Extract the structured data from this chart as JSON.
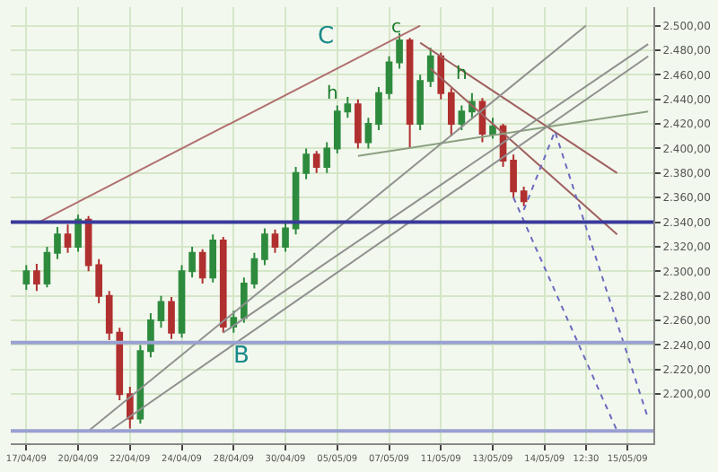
{
  "chart_data": {
    "type": "candlestick",
    "categories": [
      null,
      "17/04/09",
      null,
      null,
      null,
      null,
      "20/04/09",
      null,
      null,
      null,
      null,
      "22/04/09",
      null,
      null,
      null,
      null,
      "24/04/09",
      null,
      null,
      null,
      null,
      "28/04/09",
      null,
      null,
      null,
      null,
      "30/04/09",
      null,
      null,
      null,
      null,
      "05/05/09",
      null,
      null,
      null,
      null,
      "07/05/09",
      null,
      null,
      null,
      null,
      "11/05/09",
      null,
      null,
      null,
      null,
      "13/05/09",
      null,
      null,
      null,
      null,
      "14/05/09",
      null,
      null,
      null,
      "12:30",
      null,
      null,
      null,
      "15/05/09",
      null,
      null
    ],
    "ohlc": [
      null,
      [
        2290,
        2305,
        2285,
        2300
      ],
      [
        2300,
        2306,
        2284,
        2290
      ],
      [
        2290,
        2320,
        2287,
        2315
      ],
      [
        2315,
        2336,
        2310,
        2330
      ],
      [
        2330,
        2338,
        2315,
        2320
      ],
      [
        2320,
        2346,
        2316,
        2342
      ],
      [
        2342,
        2345,
        2300,
        2305
      ],
      [
        2305,
        2310,
        2274,
        2280
      ],
      [
        2280,
        2284,
        2244,
        2250
      ],
      [
        2250,
        2254,
        2195,
        2200
      ],
      [
        2200,
        2206,
        2172,
        2180
      ],
      [
        2180,
        2240,
        2176,
        2235
      ],
      [
        2235,
        2266,
        2230,
        2260
      ],
      [
        2260,
        2280,
        2254,
        2275
      ],
      [
        2275,
        2279,
        2245,
        2250
      ],
      [
        2250,
        2305,
        2246,
        2300
      ],
      [
        2300,
        2320,
        2295,
        2315
      ],
      [
        2315,
        2318,
        2290,
        2295
      ],
      [
        2295,
        2330,
        2291,
        2325
      ],
      [
        2325,
        2328,
        2250,
        2255
      ],
      [
        2255,
        2268,
        2250,
        2262
      ],
      [
        2262,
        2295,
        2258,
        2290
      ],
      [
        2290,
        2315,
        2286,
        2310
      ],
      [
        2310,
        2335,
        2305,
        2330
      ],
      [
        2330,
        2334,
        2315,
        2320
      ],
      [
        2320,
        2340,
        2316,
        2335
      ],
      [
        2335,
        2385,
        2330,
        2380
      ],
      [
        2380,
        2400,
        2375,
        2395
      ],
      [
        2395,
        2398,
        2380,
        2385
      ],
      [
        2385,
        2405,
        2380,
        2400
      ],
      [
        2400,
        2435,
        2396,
        2430
      ],
      [
        2430,
        2442,
        2425,
        2436
      ],
      [
        2436,
        2440,
        2400,
        2405
      ],
      [
        2405,
        2425,
        2400,
        2420
      ],
      [
        2420,
        2450,
        2415,
        2445
      ],
      [
        2445,
        2475,
        2440,
        2470
      ],
      [
        2470,
        2494,
        2465,
        2488
      ],
      [
        2488,
        2490,
        2400,
        2420
      ],
      [
        2420,
        2460,
        2415,
        2455
      ],
      [
        2455,
        2482,
        2450,
        2475
      ],
      [
        2475,
        2478,
        2440,
        2445
      ],
      [
        2445,
        2449,
        2410,
        2420
      ],
      [
        2420,
        2435,
        2415,
        2430
      ],
      [
        2430,
        2445,
        2425,
        2438
      ],
      [
        2438,
        2441,
        2405,
        2412
      ],
      [
        2412,
        2425,
        2408,
        2418
      ],
      [
        2418,
        2420,
        2385,
        2390
      ],
      [
        2390,
        2395,
        2360,
        2365
      ],
      [
        2365,
        2369,
        2353,
        2357
      ],
      null,
      null,
      null,
      null,
      null,
      null,
      null,
      null,
      null,
      null,
      null,
      null
    ],
    "series": [
      {
        "type": "line",
        "color": "#b07070",
        "line_style": "solid",
        "values": [
          null,
          null,
          2339,
          null,
          null,
          null,
          null,
          null,
          null,
          null,
          null,
          null,
          null,
          null,
          null,
          null,
          null,
          null,
          null,
          null,
          null,
          null,
          null,
          null,
          null,
          null,
          null,
          null,
          null,
          null,
          null,
          null,
          null,
          null,
          null,
          null,
          null,
          null,
          null,
          2500,
          null,
          null,
          null,
          null,
          null,
          null,
          null,
          null,
          null,
          null,
          null,
          null,
          null,
          null,
          null,
          null,
          null,
          null,
          null,
          null,
          null,
          null
        ]
      },
      {
        "type": "line",
        "color": "#a06060",
        "line_style": "solid",
        "values": [
          null,
          null,
          null,
          null,
          null,
          null,
          null,
          null,
          null,
          null,
          null,
          null,
          null,
          null,
          null,
          null,
          null,
          null,
          null,
          null,
          null,
          null,
          null,
          null,
          null,
          null,
          null,
          null,
          null,
          null,
          null,
          null,
          null,
          null,
          null,
          null,
          null,
          null,
          null,
          2486,
          null,
          null,
          null,
          null,
          null,
          null,
          null,
          null,
          null,
          null,
          null,
          null,
          null,
          null,
          null,
          null,
          null,
          null,
          2380,
          null,
          null,
          null
        ]
      },
      {
        "type": "line",
        "color": "#a06060",
        "line_style": "solid",
        "values": [
          null,
          null,
          null,
          null,
          null,
          null,
          null,
          null,
          null,
          null,
          null,
          null,
          null,
          null,
          null,
          null,
          null,
          null,
          null,
          null,
          null,
          null,
          null,
          null,
          null,
          null,
          null,
          null,
          null,
          null,
          null,
          null,
          null,
          null,
          null,
          null,
          null,
          null,
          null,
          null,
          2465,
          null,
          null,
          null,
          null,
          null,
          null,
          null,
          null,
          null,
          null,
          null,
          null,
          null,
          null,
          null,
          null,
          null,
          2330,
          null,
          null,
          null
        ]
      },
      {
        "type": "line",
        "color": "#8aa080",
        "line_style": "solid",
        "values": [
          null,
          null,
          null,
          null,
          null,
          null,
          null,
          null,
          null,
          null,
          null,
          null,
          null,
          null,
          null,
          null,
          null,
          null,
          null,
          null,
          null,
          null,
          null,
          null,
          null,
          null,
          null,
          null,
          null,
          null,
          null,
          null,
          null,
          2394,
          null,
          null,
          null,
          null,
          null,
          null,
          null,
          null,
          null,
          null,
          null,
          null,
          null,
          null,
          null,
          null,
          null,
          null,
          null,
          null,
          null,
          null,
          null,
          null,
          null,
          null,
          null,
          2430
        ]
      },
      {
        "type": "line",
        "color": "#909090",
        "line_style": "solid",
        "values": [
          null,
          null,
          null,
          null,
          null,
          null,
          null,
          2170,
          null,
          null,
          null,
          null,
          null,
          null,
          null,
          null,
          null,
          null,
          null,
          null,
          null,
          null,
          null,
          null,
          null,
          null,
          null,
          null,
          null,
          null,
          null,
          null,
          null,
          null,
          null,
          null,
          null,
          null,
          null,
          null,
          null,
          null,
          null,
          null,
          null,
          null,
          null,
          null,
          null,
          null,
          null,
          null,
          null,
          null,
          null,
          2500,
          null,
          null,
          null,
          null,
          null,
          null
        ]
      },
      {
        "type": "line",
        "color": "#909090",
        "line_style": "solid",
        "values": [
          null,
          null,
          null,
          null,
          null,
          null,
          null,
          null,
          null,
          2170,
          null,
          null,
          null,
          null,
          null,
          null,
          null,
          null,
          null,
          null,
          null,
          null,
          null,
          null,
          null,
          null,
          null,
          null,
          null,
          null,
          null,
          null,
          null,
          null,
          null,
          null,
          null,
          null,
          null,
          null,
          null,
          null,
          null,
          null,
          null,
          null,
          null,
          null,
          null,
          null,
          null,
          null,
          null,
          null,
          null,
          null,
          null,
          null,
          null,
          null,
          null,
          2475
        ]
      },
      {
        "type": "line",
        "color": "#909090",
        "line_style": "solid",
        "values": [
          null,
          null,
          null,
          null,
          null,
          null,
          null,
          null,
          null,
          null,
          null,
          null,
          null,
          null,
          null,
          null,
          null,
          null,
          null,
          null,
          2250,
          null,
          null,
          null,
          null,
          null,
          null,
          null,
          null,
          null,
          null,
          null,
          null,
          null,
          null,
          null,
          null,
          null,
          null,
          null,
          null,
          null,
          null,
          null,
          null,
          null,
          null,
          null,
          null,
          null,
          null,
          null,
          null,
          null,
          null,
          null,
          null,
          null,
          null,
          null,
          null,
          2485
        ]
      },
      {
        "type": "line",
        "color": "#6a6ac0",
        "line_style": "dotted",
        "values": [
          null,
          null,
          null,
          null,
          null,
          null,
          null,
          null,
          null,
          null,
          null,
          null,
          null,
          null,
          null,
          null,
          null,
          null,
          null,
          null,
          null,
          null,
          null,
          null,
          null,
          null,
          null,
          null,
          null,
          null,
          null,
          null,
          null,
          null,
          null,
          null,
          null,
          null,
          null,
          null,
          null,
          null,
          null,
          null,
          null,
          null,
          null,
          null,
          null,
          2350,
          null,
          null,
          2414,
          null,
          null,
          null,
          null,
          null,
          null,
          null,
          null,
          2180
        ]
      },
      {
        "type": "line",
        "color": "#6a6ac0",
        "line_style": "dotted",
        "values": [
          null,
          null,
          null,
          null,
          null,
          null,
          null,
          null,
          null,
          null,
          null,
          null,
          null,
          null,
          null,
          null,
          null,
          null,
          null,
          null,
          null,
          null,
          null,
          null,
          null,
          null,
          null,
          null,
          null,
          null,
          null,
          null,
          null,
          null,
          null,
          null,
          null,
          null,
          null,
          null,
          null,
          null,
          null,
          null,
          null,
          null,
          null,
          null,
          2360,
          null,
          null,
          null,
          null,
          null,
          null,
          null,
          null,
          null,
          2170,
          null,
          null,
          null
        ]
      }
    ],
    "ref_lines": [
      {
        "axis": "y",
        "value": 2340,
        "color": "#3a3a9a"
      },
      {
        "axis": "y",
        "value": 2242,
        "color": "#9aa0d0"
      },
      {
        "axis": "y",
        "value": 2170,
        "color": "#9aa0d0"
      }
    ],
    "annotations": [
      "C",
      "c",
      "h",
      "h",
      "B"
    ],
    "ylim": [
      2160,
      2515
    ],
    "yticks": [
      {
        "value": 2200,
        "label": "2.200,00"
      },
      {
        "value": 2220,
        "label": "2.220,00"
      },
      {
        "value": 2240,
        "label": "2.240,00"
      },
      {
        "value": 2260,
        "label": "2.260,00"
      },
      {
        "value": 2280,
        "label": "2.280,00"
      },
      {
        "value": 2300,
        "label": "2.300,00"
      },
      {
        "value": 2320,
        "label": "2.320,00"
      },
      {
        "value": 2340,
        "label": "2.340,00"
      },
      {
        "value": 2360,
        "label": "2.360,00"
      },
      {
        "value": 2380,
        "label": "2.380,00"
      },
      {
        "value": 2400,
        "label": "2.400,00"
      },
      {
        "value": 2420,
        "label": "2.420,00"
      },
      {
        "value": 2440,
        "label": "2.440,00"
      },
      {
        "value": 2460,
        "label": "2.460,00"
      },
      {
        "value": 2480,
        "label": "2.480,00"
      },
      {
        "value": 2500,
        "label": "2.500,00"
      }
    ],
    "grid": true
  }
}
